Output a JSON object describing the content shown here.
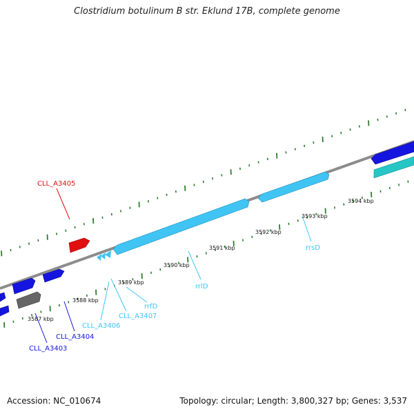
{
  "title": "Clostridium botulinum B str. Eklund 17B, complete genome",
  "footer": {
    "accession": "Accession: NC_010674",
    "summary": "Topology: circular; Length: 3,800,327 bp; Genes: 3,537"
  },
  "colors": {
    "backbone": "#8c8c8c",
    "tick": "#2e7d2e",
    "cds": "#1515e0",
    "rrna": "#40c4f4",
    "trna": "#40c4f4",
    "pseudo": "#666666",
    "other": "#e01010",
    "teal": "#26c6c6"
  },
  "scale_labels": [
    "3587 kbp",
    "3588 kbp",
    "3589 kbp",
    "3590 kbp",
    "3591 kbp",
    "3592 kbp",
    "3593 kbp",
    "3594 kbp"
  ],
  "gene_labels": [
    {
      "text": "CLL_A3405",
      "color": "#e01010"
    },
    {
      "text": "CLL_A3404",
      "color": "#1515e0"
    },
    {
      "text": "CLL_A3403",
      "color": "#1515e0"
    },
    {
      "text": "CLL_A3406",
      "color": "#40c4f4"
    },
    {
      "text": "CLL_A3407",
      "color": "#40c4f4"
    },
    {
      "text": "rrfD",
      "color": "#40c4f4"
    },
    {
      "text": "rrlD",
      "color": "#40c4f4"
    },
    {
      "text": "rrsD",
      "color": "#40c4f4"
    }
  ]
}
